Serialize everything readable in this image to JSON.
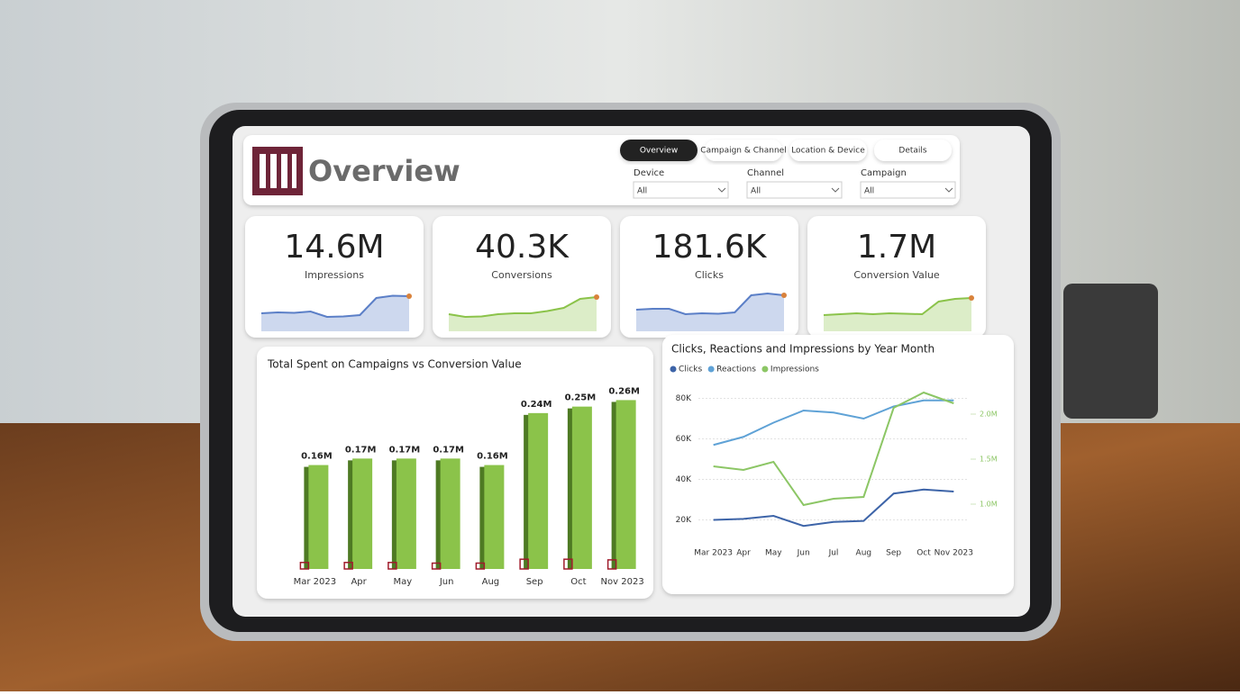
{
  "header": {
    "title": "Overview"
  },
  "tabs": [
    "Overview",
    "Campaign & Channel",
    "Location & Device",
    "Details"
  ],
  "active_tab": 0,
  "filters": [
    {
      "label": "Device",
      "value": "All"
    },
    {
      "label": "Channel",
      "value": "All"
    },
    {
      "label": "Campaign",
      "value": "All"
    }
  ],
  "kpis": [
    {
      "value": "14.6M",
      "label": "Impressions",
      "color": "#5b7fc7",
      "trend": [
        40,
        42,
        41,
        44,
        32,
        33,
        36,
        74,
        79,
        78
      ]
    },
    {
      "value": "40.3K",
      "label": "Conversions",
      "color": "#8bc34a",
      "trend": [
        38,
        32,
        33,
        38,
        40,
        40,
        45,
        52,
        72,
        76
      ]
    },
    {
      "value": "181.6K",
      "label": "Clicks",
      "color": "#5b7fc7",
      "trend": [
        48,
        50,
        50,
        38,
        40,
        39,
        42,
        80,
        84,
        80
      ]
    },
    {
      "value": "1.7M",
      "label": "Conversion Value",
      "color": "#8bc34a",
      "trend": [
        36,
        38,
        40,
        38,
        40,
        39,
        38,
        66,
        72,
        74
      ]
    }
  ],
  "chart_data": [
    {
      "type": "bar",
      "title": "Total Spent on Campaigns vs Conversion Value",
      "categories": [
        "Mar 2023",
        "Apr",
        "May",
        "Jun",
        "Aug",
        "Sep",
        "Oct",
        "Nov 2023"
      ],
      "ylim": [
        0,
        280000
      ],
      "series": [
        {
          "color": "#8bc34a",
          "values": [
            160000,
            170000,
            170000,
            170000,
            160000,
            240000,
            250000,
            260000
          ],
          "value_labels": [
            "0.16M",
            "0.17M",
            "0.17M",
            "0.17M",
            "0.16M",
            "0.24M",
            "0.25M",
            "0.26M"
          ]
        },
        {
          "color": "#a01c2c",
          "values": [
            10000,
            10000,
            10000,
            9000,
            9000,
            15000,
            15000,
            14000
          ]
        }
      ]
    },
    {
      "type": "line",
      "title": "Clicks, Reactions and Impressions by Year Month",
      "categories": [
        "Mar 2023",
        "Apr",
        "May",
        "Jun",
        "Jul",
        "Aug",
        "Sep",
        "Oct",
        "Nov 2023"
      ],
      "ylim": [
        10000,
        90000
      ],
      "yticks": [
        {
          "value": 20000,
          "label": "20K"
        },
        {
          "value": 40000,
          "label": "40K"
        },
        {
          "value": 60000,
          "label": "60K"
        },
        {
          "value": 80000,
          "label": "80K"
        }
      ],
      "y2lim": [
        600000,
        2400000
      ],
      "y2ticks": [
        {
          "value": 1000000,
          "label": "1.0M"
        },
        {
          "value": 1500000,
          "label": "1.5M"
        },
        {
          "value": 2000000,
          "label": "2.0M"
        }
      ],
      "grid": true,
      "series": [
        {
          "name": "Clicks",
          "color": "#3d64a8",
          "values": [
            20000,
            20500,
            22000,
            17000,
            19000,
            19500,
            33000,
            35000,
            34000
          ]
        },
        {
          "name": "Reactions",
          "color": "#5fa2d6",
          "values": [
            57000,
            61000,
            68000,
            74000,
            73000,
            70000,
            76000,
            79000,
            79000
          ]
        },
        {
          "name": "Impressions",
          "color": "#8cc665",
          "axis": "y2",
          "values": [
            1420000,
            1380000,
            1470000,
            990000,
            1060000,
            1080000,
            2070000,
            2240000,
            2120000
          ]
        }
      ]
    }
  ]
}
